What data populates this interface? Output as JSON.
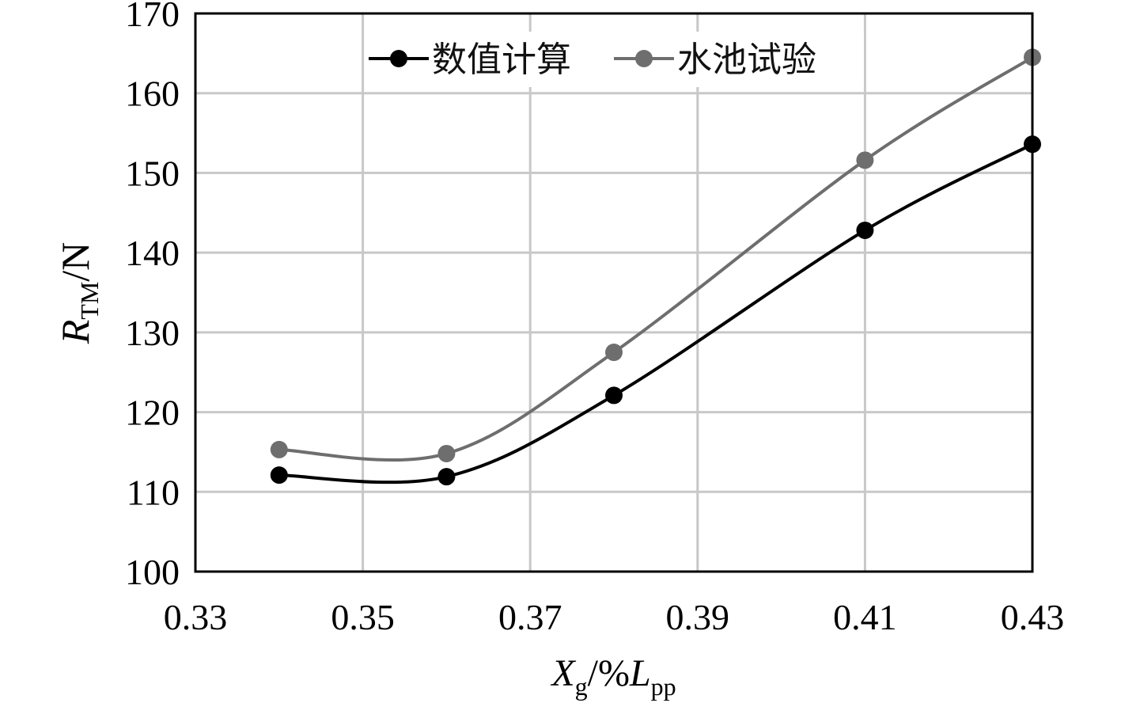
{
  "chart_data": {
    "type": "line",
    "title": "",
    "xlabel": {
      "main": "X",
      "sub": "g",
      "mid": "/%",
      "main2": "L",
      "sub2": "pp"
    },
    "ylabel": {
      "main": "R",
      "sub": "TM",
      "tail": "/N"
    },
    "xlim": [
      0.33,
      0.43
    ],
    "ylim": [
      100,
      170
    ],
    "x_ticks": [
      "0.33",
      "0.35",
      "0.37",
      "0.39",
      "0.41",
      "0.43"
    ],
    "y_ticks": [
      "100",
      "110",
      "120",
      "130",
      "140",
      "150",
      "160",
      "170"
    ],
    "grid": true,
    "legend_position": "top",
    "series": [
      {
        "name": "数值计算",
        "color": "#000000",
        "x": [
          0.34,
          0.36,
          0.38,
          0.41,
          0.43
        ],
        "y": [
          112.1,
          111.9,
          122.1,
          142.8,
          153.6
        ]
      },
      {
        "name": "水池试验",
        "color": "#6e6e6e",
        "x": [
          0.34,
          0.36,
          0.38,
          0.41,
          0.43
        ],
        "y": [
          115.3,
          114.8,
          127.5,
          151.6,
          164.5
        ]
      }
    ]
  }
}
